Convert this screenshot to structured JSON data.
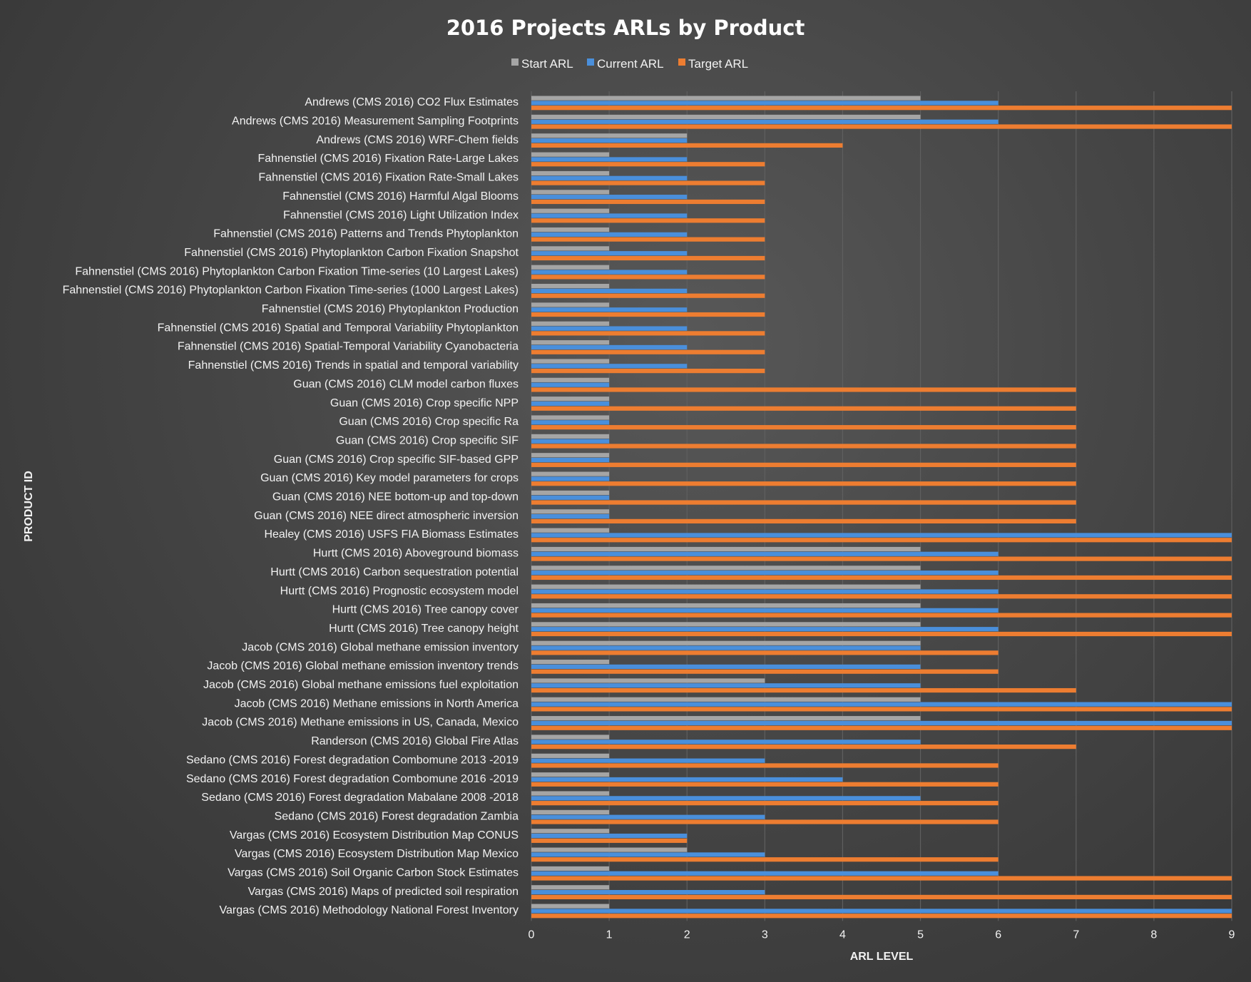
{
  "chart_data": {
    "type": "bar",
    "orientation": "horizontal",
    "title": "2016 Projects ARLs by Product",
    "xlabel": "ARL LEVEL",
    "ylabel": "PRODUCT ID",
    "xlim": [
      0,
      9
    ],
    "xticks": [
      "0",
      "1",
      "2",
      "3",
      "4",
      "5",
      "6",
      "7",
      "8",
      "9"
    ],
    "grid": true,
    "legend_position": "top",
    "categories": [
      "Andrews (CMS 2016) CO2 Flux Estimates",
      "Andrews (CMS 2016) Measurement Sampling Footprints",
      "Andrews (CMS 2016) WRF-Chem fields",
      "Fahnenstiel (CMS 2016) Fixation Rate-Large Lakes",
      "Fahnenstiel (CMS 2016) Fixation Rate-Small Lakes",
      "Fahnenstiel (CMS 2016) Harmful Algal Blooms",
      "Fahnenstiel (CMS 2016) Light Utilization Index",
      "Fahnenstiel (CMS 2016) Patterns and Trends Phytoplankton",
      "Fahnenstiel (CMS 2016) Phytoplankton Carbon Fixation Snapshot",
      "Fahnenstiel (CMS 2016) Phytoplankton Carbon Fixation Time-series (10 Largest Lakes)",
      "Fahnenstiel (CMS 2016) Phytoplankton Carbon Fixation Time-series (1000 Largest Lakes)",
      "Fahnenstiel (CMS 2016) Phytoplankton Production",
      "Fahnenstiel (CMS 2016) Spatial and Temporal Variability Phytoplankton",
      "Fahnenstiel (CMS 2016) Spatial-Temporal Variability Cyanobacteria",
      "Fahnenstiel (CMS 2016) Trends in spatial and temporal variability",
      "Guan (CMS 2016) CLM model carbon fluxes",
      "Guan (CMS 2016) Crop specific NPP",
      "Guan (CMS 2016) Crop specific Ra",
      "Guan (CMS 2016) Crop specific SIF",
      "Guan (CMS 2016) Crop specific SIF-based GPP",
      "Guan (CMS 2016) Key model parameters for crops",
      "Guan (CMS 2016) NEE bottom-up and top-down",
      "Guan (CMS 2016) NEE direct atmospheric inversion",
      "Healey (CMS 2016) USFS FIA Biomass Estimates",
      "Hurtt (CMS 2016) Aboveground biomass",
      "Hurtt (CMS 2016) Carbon sequestration potential",
      "Hurtt (CMS 2016) Prognostic ecosystem model",
      "Hurtt (CMS 2016) Tree canopy cover",
      "Hurtt (CMS 2016) Tree canopy height",
      "Jacob (CMS 2016) Global methane emission inventory",
      "Jacob (CMS 2016) Global methane emission inventory trends",
      "Jacob (CMS 2016) Global methane emissions fuel exploitation",
      "Jacob (CMS 2016) Methane emissions in North America",
      "Jacob (CMS 2016) Methane emissions in US, Canada, Mexico",
      "Randerson (CMS 2016) Global Fire Atlas",
      "Sedano (CMS 2016) Forest degradation Combomune 2013 -2019",
      "Sedano (CMS 2016) Forest degradation Combomune 2016 -2019",
      "Sedano (CMS 2016) Forest degradation Mabalane 2008 -2018",
      "Sedano (CMS 2016) Forest degradation Zambia",
      "Vargas (CMS 2016) Ecosystem Distribution Map CONUS",
      "Vargas (CMS 2016) Ecosystem Distribution Map Mexico",
      "Vargas (CMS 2016) Soil Organic Carbon Stock Estimates",
      "Vargas (CMS 2016) Maps of predicted soil respiration",
      "Vargas (CMS 2016) Methodology National Forest Inventory"
    ],
    "series": [
      {
        "name": "Start ARL",
        "color": "#a5a5a5",
        "values": [
          5,
          5,
          2,
          1,
          1,
          1,
          1,
          1,
          1,
          1,
          1,
          1,
          1,
          1,
          1,
          1,
          1,
          1,
          1,
          1,
          1,
          1,
          1,
          1,
          5,
          5,
          5,
          5,
          5,
          5,
          1,
          3,
          5,
          5,
          1,
          1,
          1,
          1,
          1,
          1,
          2,
          1,
          1,
          1
        ]
      },
      {
        "name": "Current ARL",
        "color": "#4a8fdb",
        "values": [
          6,
          6,
          2,
          2,
          2,
          2,
          2,
          2,
          2,
          2,
          2,
          2,
          2,
          2,
          2,
          1,
          1,
          1,
          1,
          1,
          1,
          1,
          1,
          9,
          6,
          6,
          6,
          6,
          6,
          5,
          5,
          5,
          9,
          9,
          5,
          3,
          4,
          5,
          3,
          2,
          3,
          6,
          3,
          9
        ]
      },
      {
        "name": "Target ARL",
        "color": "#ed7d31",
        "values": [
          9,
          9,
          4,
          3,
          3,
          3,
          3,
          3,
          3,
          3,
          3,
          3,
          3,
          3,
          3,
          7,
          7,
          7,
          7,
          7,
          7,
          7,
          7,
          9,
          9,
          9,
          9,
          9,
          9,
          6,
          6,
          7,
          9,
          9,
          7,
          6,
          6,
          6,
          6,
          2,
          6,
          9,
          9,
          9
        ]
      }
    ]
  }
}
